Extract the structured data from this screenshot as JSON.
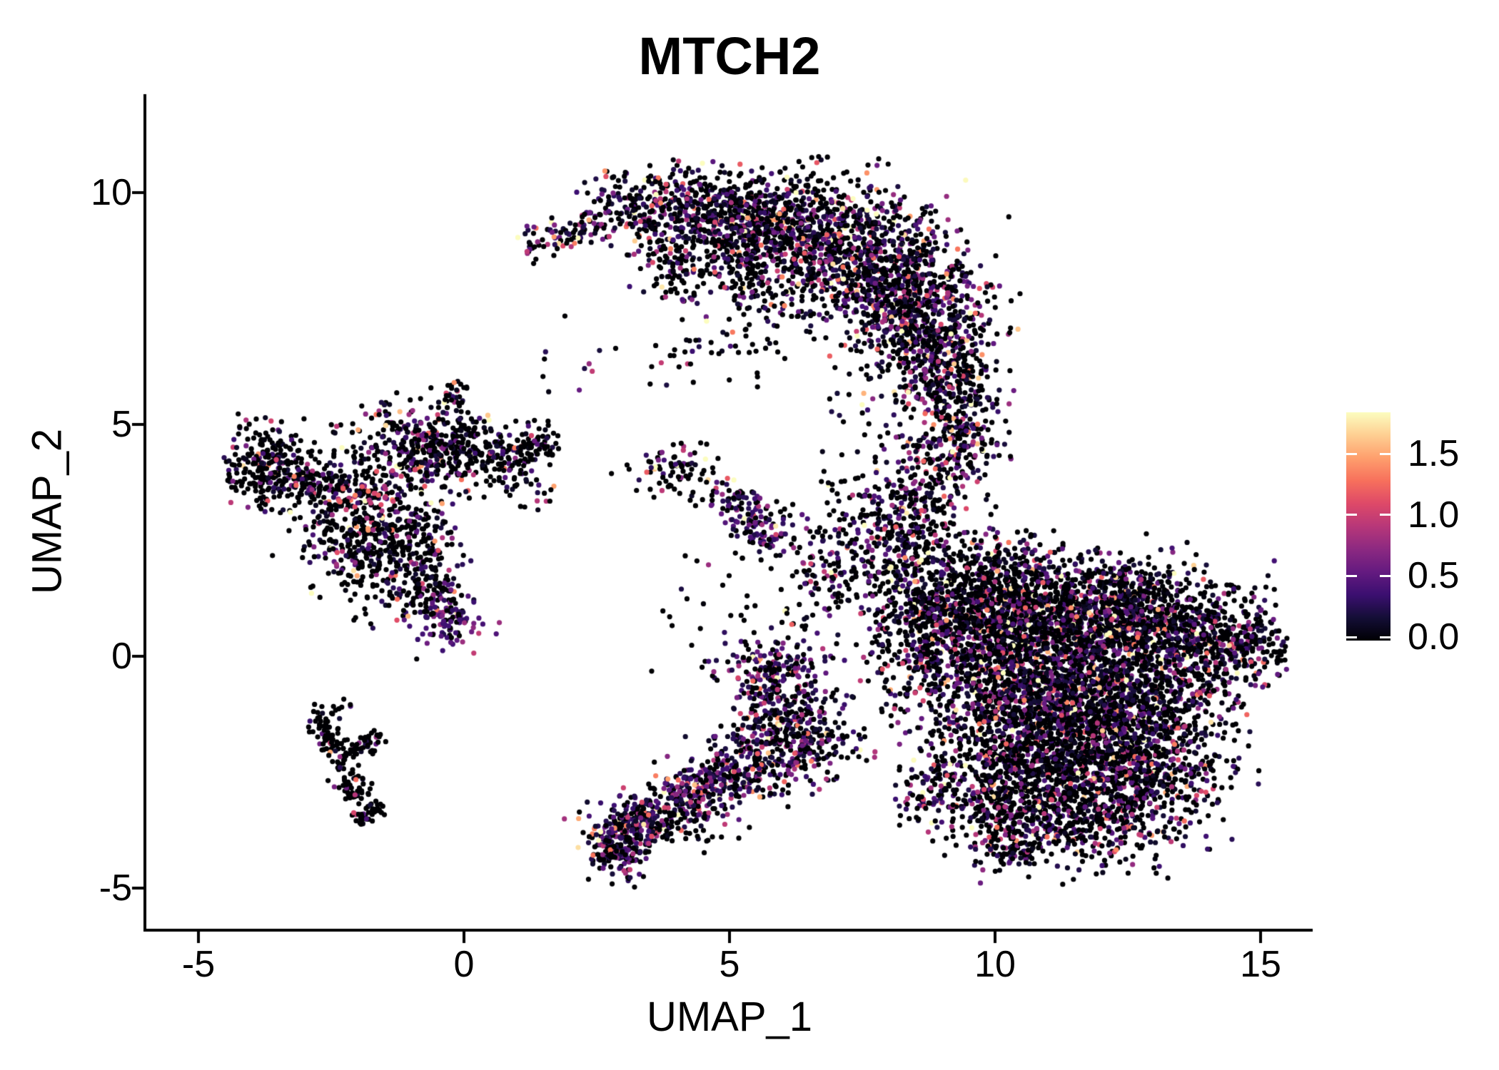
{
  "chart_data": {
    "type": "scatter",
    "title": "MTCH2",
    "xlabel": "UMAP_1",
    "ylabel": "UMAP_2",
    "x_ticks": [
      -5,
      0,
      5,
      10,
      15
    ],
    "x_tick_labels": [
      "-5",
      "0",
      "5",
      "10",
      "15"
    ],
    "y_ticks": [
      10,
      5,
      0,
      -5
    ],
    "y_tick_labels": [
      "10",
      "5",
      "0",
      "-5"
    ],
    "x_range": [
      -5.95,
      15.98
    ],
    "y_range": [
      -5.88,
      12.12
    ],
    "grid": false,
    "background_color": "#ffffff",
    "axis_color": "#000000",
    "point_radius_px": 3.6,
    "colorbar": {
      "position": "right",
      "tick_values": [
        1.5,
        1.0,
        0.5,
        0.0
      ],
      "tick_labels": [
        "1.5",
        "1.0",
        "0.5",
        "0.0"
      ],
      "value_max": 1.84,
      "value_min": 0.0,
      "tick_mark_color": "#ffffff",
      "palette_name": "magma",
      "palette_stops": [
        [
          0.0,
          "#000004"
        ],
        [
          0.1,
          "#140e36"
        ],
        [
          0.2,
          "#3b0f70"
        ],
        [
          0.3,
          "#641a80"
        ],
        [
          0.4,
          "#8c2981"
        ],
        [
          0.5,
          "#b73779"
        ],
        [
          0.6,
          "#de4968"
        ],
        [
          0.7,
          "#f7705c"
        ],
        [
          0.8,
          "#fe9f6d"
        ],
        [
          0.9,
          "#fecf92"
        ],
        [
          1.0,
          "#fcfdbf"
        ]
      ]
    },
    "seed": 42,
    "clusters": [
      {
        "name": "top-crescent",
        "zero": 0.45,
        "scale": 0.5,
        "shapes": [
          {
            "k": "strand",
            "a": [
              1.1,
              8.8
            ],
            "b": [
              2.6,
              9.4
            ],
            "w": 0.22,
            "n": 90
          },
          {
            "k": "strand",
            "a": [
              2.6,
              9.4
            ],
            "b": [
              4.2,
              10.0
            ],
            "w": 0.4,
            "n": 220
          },
          {
            "k": "blob",
            "c": [
              4.9,
              9.6
            ],
            "sd": [
              0.7,
              0.42
            ],
            "n": 330
          },
          {
            "k": "blob",
            "c": [
              6.1,
              9.25
            ],
            "sd": [
              0.8,
              0.55
            ],
            "n": 520
          },
          {
            "k": "blob",
            "c": [
              7.3,
              8.6
            ],
            "sd": [
              0.9,
              0.7
            ],
            "n": 700
          },
          {
            "k": "blob",
            "c": [
              8.4,
              7.5
            ],
            "sd": [
              0.7,
              0.8
            ],
            "n": 650
          },
          {
            "k": "blob",
            "c": [
              9.1,
              6.3
            ],
            "sd": [
              0.5,
              0.7
            ],
            "n": 330
          },
          {
            "k": "blob",
            "c": [
              4.6,
              8.6
            ],
            "sd": [
              0.6,
              0.5
            ],
            "n": 90,
            "zero": 0.55
          },
          {
            "k": "strand",
            "a": [
              3.6,
              8.9
            ],
            "b": [
              4.15,
              7.6
            ],
            "w": 0.28,
            "n": 70,
            "zero": 0.55
          },
          {
            "k": "strand",
            "a": [
              4.9,
              8.8
            ],
            "b": [
              5.5,
              7.9
            ],
            "w": 0.25,
            "n": 60,
            "zero": 0.55
          },
          {
            "k": "blob",
            "c": [
              5.7,
              7.2
            ],
            "sd": [
              0.6,
              0.6
            ],
            "n": 60,
            "zero": 0.6
          },
          {
            "k": "blob",
            "c": [
              4.3,
              6.5
            ],
            "sd": [
              0.5,
              0.4
            ],
            "n": 25,
            "zero": 0.6
          },
          {
            "k": "blob",
            "c": [
              1.9,
              6.3
            ],
            "sd": [
              0.5,
              0.6
            ],
            "n": 12,
            "zero": 0.7
          }
        ]
      },
      {
        "name": "neck",
        "zero": 0.45,
        "scale": 0.5,
        "shapes": [
          {
            "k": "strand",
            "a": [
              9.25,
              5.9
            ],
            "b": [
              8.75,
              3.6
            ],
            "w": 0.38,
            "n": 220
          },
          {
            "k": "strand",
            "a": [
              8.75,
              3.6
            ],
            "b": [
              8.35,
              1.9
            ],
            "w": 0.5,
            "n": 260
          },
          {
            "k": "blob",
            "c": [
              7.9,
              3.1
            ],
            "sd": [
              0.5,
              0.9
            ],
            "n": 70,
            "zero": 0.6
          },
          {
            "k": "blob",
            "c": [
              9.6,
              4.6
            ],
            "sd": [
              0.3,
              0.5
            ],
            "n": 80
          }
        ]
      },
      {
        "name": "right-main",
        "zero": 0.52,
        "scale": 0.5,
        "shapes": [
          {
            "k": "blob",
            "c": [
              9.3,
              0.9
            ],
            "sd": [
              0.75,
              0.8
            ],
            "n": 650,
            "zero": 0.48,
            "scale": 0.55
          },
          {
            "k": "blob",
            "c": [
              10.8,
              0.95
            ],
            "sd": [
              1.0,
              0.6
            ],
            "n": 750
          },
          {
            "k": "blob",
            "c": [
              12.4,
              0.9
            ],
            "sd": [
              1.0,
              0.45
            ],
            "n": 550
          },
          {
            "k": "blob",
            "c": [
              13.9,
              0.2
            ],
            "sd": [
              0.8,
              0.7
            ],
            "n": 500
          },
          {
            "k": "blob",
            "c": [
              10.6,
              -0.6
            ],
            "sd": [
              1.0,
              0.8
            ],
            "n": 900,
            "zero": 0.48,
            "scale": 0.55
          },
          {
            "k": "blob",
            "c": [
              12.2,
              -0.7
            ],
            "sd": [
              1.0,
              0.8
            ],
            "n": 900
          },
          {
            "k": "blob",
            "c": [
              11.0,
              -2.1
            ],
            "sd": [
              1.1,
              0.8
            ],
            "n": 900
          },
          {
            "k": "blob",
            "c": [
              12.7,
              -2.3
            ],
            "sd": [
              0.9,
              0.7
            ],
            "n": 600
          },
          {
            "k": "blob",
            "c": [
              11.8,
              -3.5
            ],
            "sd": [
              0.9,
              0.55
            ],
            "n": 400
          },
          {
            "k": "blob",
            "c": [
              10.2,
              -3.2
            ],
            "sd": [
              0.6,
              0.5
            ],
            "n": 250
          },
          {
            "k": "strand",
            "a": [
              14.6,
              0.0
            ],
            "b": [
              15.25,
              0.55
            ],
            "w": 0.28,
            "n": 70
          },
          {
            "k": "strand",
            "a": [
              9.3,
              -2.6
            ],
            "b": [
              8.3,
              -3.3
            ],
            "w": 0.3,
            "n": 90
          },
          {
            "k": "strand",
            "a": [
              9.8,
              -4.05
            ],
            "b": [
              10.7,
              -4.35
            ],
            "w": 0.22,
            "n": 70
          },
          {
            "k": "blob",
            "c": [
              8.6,
              0.2
            ],
            "sd": [
              0.5,
              0.7
            ],
            "n": 180,
            "zero": 0.6
          },
          {
            "k": "blob",
            "c": [
              10.2,
              1.8
            ],
            "sd": [
              0.8,
              0.45
            ],
            "n": 200
          },
          {
            "k": "blob",
            "c": [
              12.7,
              1.6
            ],
            "sd": [
              0.5,
              0.3
            ],
            "n": 100
          }
        ]
      },
      {
        "name": "left-archipelago",
        "zero": 0.64,
        "scale": 0.5,
        "shapes": [
          {
            "k": "blob",
            "c": [
              -3.7,
              4.1
            ],
            "sd": [
              0.42,
              0.42
            ],
            "n": 240
          },
          {
            "k": "strand",
            "a": [
              -3.2,
              3.9
            ],
            "b": [
              -2.6,
              3.5
            ],
            "w": 0.25,
            "n": 70
          },
          {
            "k": "blob",
            "c": [
              -1.95,
              3.3
            ],
            "sd": [
              0.65,
              0.75
            ],
            "n": 420
          },
          {
            "k": "blob",
            "c": [
              -1.6,
              1.95
            ],
            "sd": [
              0.45,
              0.55
            ],
            "n": 140,
            "zero": 0.7
          },
          {
            "k": "blob",
            "c": [
              -0.6,
              4.5
            ],
            "sd": [
              0.5,
              0.45
            ],
            "n": 280,
            "zero": 0.55
          },
          {
            "k": "blob",
            "c": [
              0.55,
              4.35
            ],
            "sd": [
              0.6,
              0.35
            ],
            "n": 200
          },
          {
            "k": "strand",
            "a": [
              1.0,
              4.5
            ],
            "b": [
              1.7,
              4.5
            ],
            "w": 0.18,
            "n": 40
          },
          {
            "k": "strand",
            "a": [
              -0.85,
              3.0
            ],
            "b": [
              -0.45,
              1.1
            ],
            "w": 0.3,
            "n": 170,
            "zero": 0.5
          },
          {
            "k": "blob",
            "c": [
              -0.35,
              0.75
            ],
            "sd": [
              0.4,
              0.32
            ],
            "n": 110,
            "zero": 0.25,
            "min": 0.25,
            "scale": 0.3
          },
          {
            "k": "strand",
            "a": [
              -0.35,
              5.1
            ],
            "b": [
              -0.1,
              5.95
            ],
            "w": 0.14,
            "n": 30
          },
          {
            "k": "strand",
            "a": [
              -1.3,
              4.9
            ],
            "b": [
              -1.55,
              5.45
            ],
            "w": 0.12,
            "n": 18
          },
          {
            "k": "blob",
            "c": [
              -1.4,
              2.6
            ],
            "sd": [
              0.5,
              0.4
            ],
            "n": 50,
            "zero": 0.7
          },
          {
            "k": "strand",
            "a": [
              -2.4,
              3.45
            ],
            "b": [
              -1.35,
              3.4
            ],
            "w": 0.13,
            "n": 26,
            "zero": 0.15,
            "min": 0.85,
            "scale": 0.25
          },
          {
            "k": "strand",
            "a": [
              0.8,
              3.9
            ],
            "b": [
              1.5,
              3.3
            ],
            "w": 0.2,
            "n": 20,
            "zero": 0.7
          }
        ]
      },
      {
        "name": "lower-left-v",
        "zero": 0.8,
        "scale": 0.45,
        "shapes": [
          {
            "k": "strand",
            "a": [
              -2.75,
              -1.25
            ],
            "b": [
              -1.95,
              -3.05
            ],
            "w": 0.15,
            "n": 120
          },
          {
            "k": "strand",
            "a": [
              -2.35,
              -2.15
            ],
            "b": [
              -1.5,
              -1.7
            ],
            "w": 0.13,
            "n": 55
          },
          {
            "k": "blob",
            "c": [
              -1.8,
              -3.35
            ],
            "sd": [
              0.17,
              0.15
            ],
            "n": 40
          },
          {
            "k": "blob",
            "c": [
              -2.3,
              -0.95
            ],
            "sd": [
              0.25,
              0.1
            ],
            "n": 8,
            "zero": 0.9
          }
        ]
      },
      {
        "name": "central-islands",
        "zero": 0.5,
        "scale": 0.5,
        "shapes": [
          {
            "k": "blob",
            "c": [
              4.0,
              4.0
            ],
            "sd": [
              0.4,
              0.28
            ],
            "n": 80,
            "zero": 0.66,
            "scale": 0.55
          },
          {
            "k": "strand",
            "a": [
              4.85,
              3.65
            ],
            "b": [
              5.85,
              2.45
            ],
            "w": 0.24,
            "n": 150,
            "zero": 0.4,
            "min": 0.2,
            "scale": 0.3
          },
          {
            "k": "blob",
            "c": [
              7.0,
              1.85
            ],
            "sd": [
              0.38,
              0.42
            ],
            "n": 75,
            "scale": 0.55
          },
          {
            "k": "blob",
            "c": [
              5.75,
              -0.3
            ],
            "sd": [
              0.5,
              0.38
            ],
            "n": 160,
            "zero": 0.3,
            "min": 0.2,
            "scale": 0.35
          },
          {
            "k": "blob",
            "c": [
              6.2,
              -1.3
            ],
            "sd": [
              0.45,
              0.5
            ],
            "n": 80,
            "zero": 0.6
          },
          {
            "k": "blob",
            "c": [
              4.9,
              0.9
            ],
            "sd": [
              0.7,
              0.7
            ],
            "n": 30,
            "zero": 0.85,
            "scale": 0.4
          }
        ]
      },
      {
        "name": "bottom-band",
        "zero": 0.35,
        "min": 0.1,
        "scale": 0.45,
        "shapes": [
          {
            "k": "blob",
            "c": [
              2.95,
              -4.0
            ],
            "sd": [
              0.3,
              0.4
            ],
            "n": 200
          },
          {
            "k": "strand",
            "a": [
              3.2,
              -3.75
            ],
            "b": [
              5.2,
              -2.35
            ],
            "w": 0.33,
            "n": 420
          },
          {
            "k": "strand",
            "a": [
              5.2,
              -2.35
            ],
            "b": [
              6.9,
              -1.5
            ],
            "w": 0.48,
            "n": 380,
            "zero": 0.42
          },
          {
            "k": "strand",
            "a": [
              5.7,
              -1.2
            ],
            "b": [
              6.1,
              -0.6
            ],
            "w": 0.22,
            "n": 50,
            "zero": 0.5
          },
          {
            "k": "strand",
            "a": [
              2.55,
              -4.35
            ],
            "b": [
              2.95,
              -4.15
            ],
            "w": 0.13,
            "n": 40,
            "zero": 0.5
          },
          {
            "k": "blob",
            "c": [
              4.4,
              -3.55
            ],
            "sd": [
              0.5,
              0.3
            ],
            "n": 35,
            "zero": 0.7
          }
        ]
      },
      {
        "name": "bridge-sparse",
        "zero": 0.6,
        "scale": 0.5,
        "shapes": [
          {
            "k": "blob",
            "c": [
              7.3,
              2.6
            ],
            "sd": [
              0.55,
              1.0
            ],
            "n": 90
          },
          {
            "k": "blob",
            "c": [
              6.4,
              1.4
            ],
            "sd": [
              0.35,
              0.8
            ],
            "n": 50
          }
        ]
      }
    ]
  }
}
